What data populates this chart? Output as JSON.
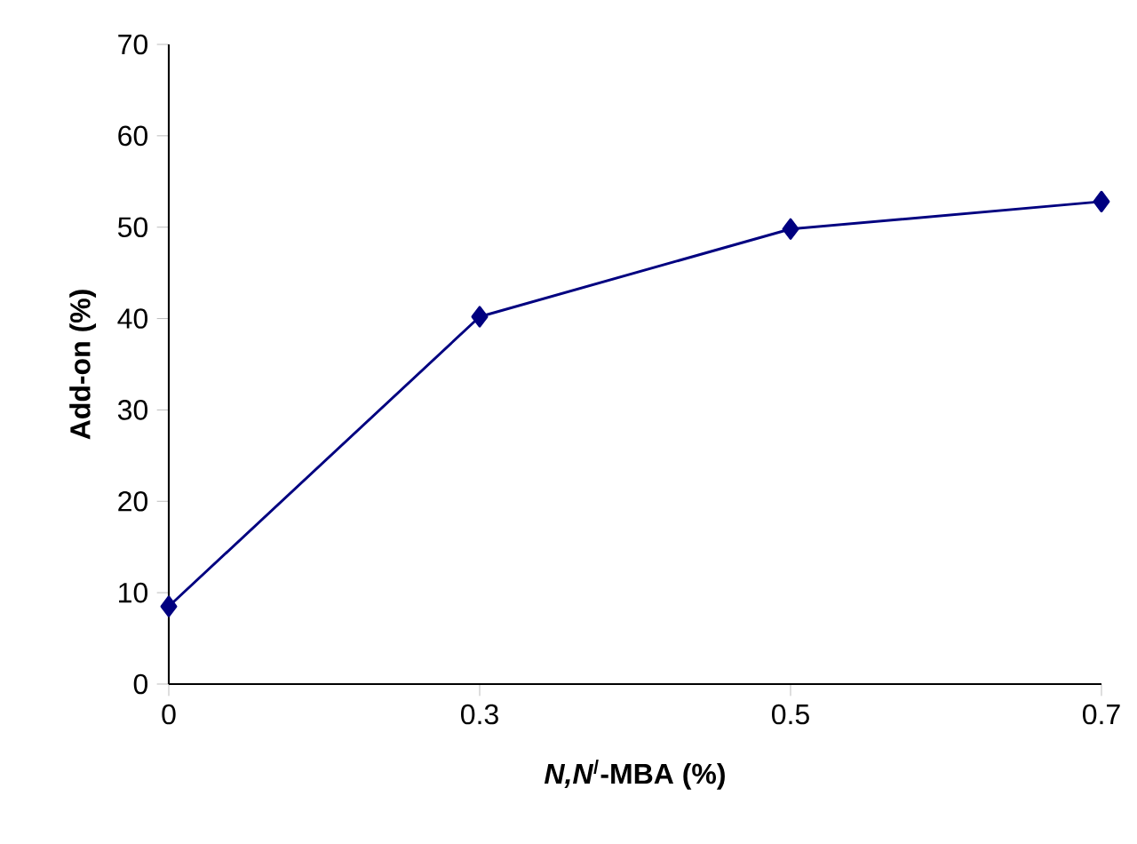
{
  "chart_data": {
    "type": "line",
    "xlabel": "*N,N*$^{/}$-MBA (%)",
    "ylabel": "Add-on (%)",
    "categories": [
      "0",
      "0.3",
      "0.5",
      "0.7"
    ],
    "series": [
      {
        "color": "#000080",
        "values": [
          8.5,
          40.2,
          49.8,
          52.8
        ]
      }
    ],
    "ylim": [
      0,
      70
    ],
    "yticks": [
      0,
      10,
      20,
      30,
      40,
      50,
      60,
      70
    ],
    "marker": "diamond",
    "line_style": "solid"
  }
}
